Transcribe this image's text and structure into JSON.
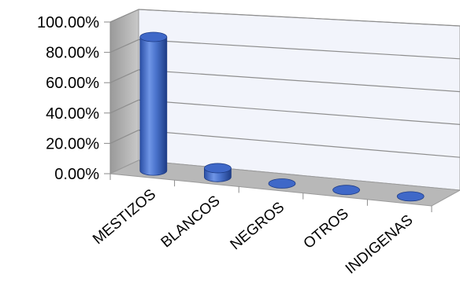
{
  "chart_data": {
    "type": "bar",
    "style": "3d-cylinder",
    "categories": [
      "MESTIZOS",
      "BLANCOS",
      "NEGROS",
      "OTROS",
      "INDIGENAS"
    ],
    "values": [
      90.0,
      6.0,
      0.0,
      0.0,
      0.0
    ],
    "value_format": "percent",
    "ylim": [
      0,
      100
    ],
    "yticks": [
      "0.00%",
      "20.00%",
      "40.00%",
      "60.00%",
      "80.00%",
      "100.00%"
    ],
    "title": "",
    "xlabel": "",
    "ylabel": "",
    "grid": true,
    "legend": "none",
    "colors": {
      "bar": "#4472c4",
      "bar_dark": "#1f3f8a",
      "bar_light": "#8fb0ee",
      "back_wall": "#f2f4fb",
      "side_wall": "#a9a9a9",
      "floor": "#b8b8b8",
      "gridline": "#8e8e8e"
    }
  }
}
